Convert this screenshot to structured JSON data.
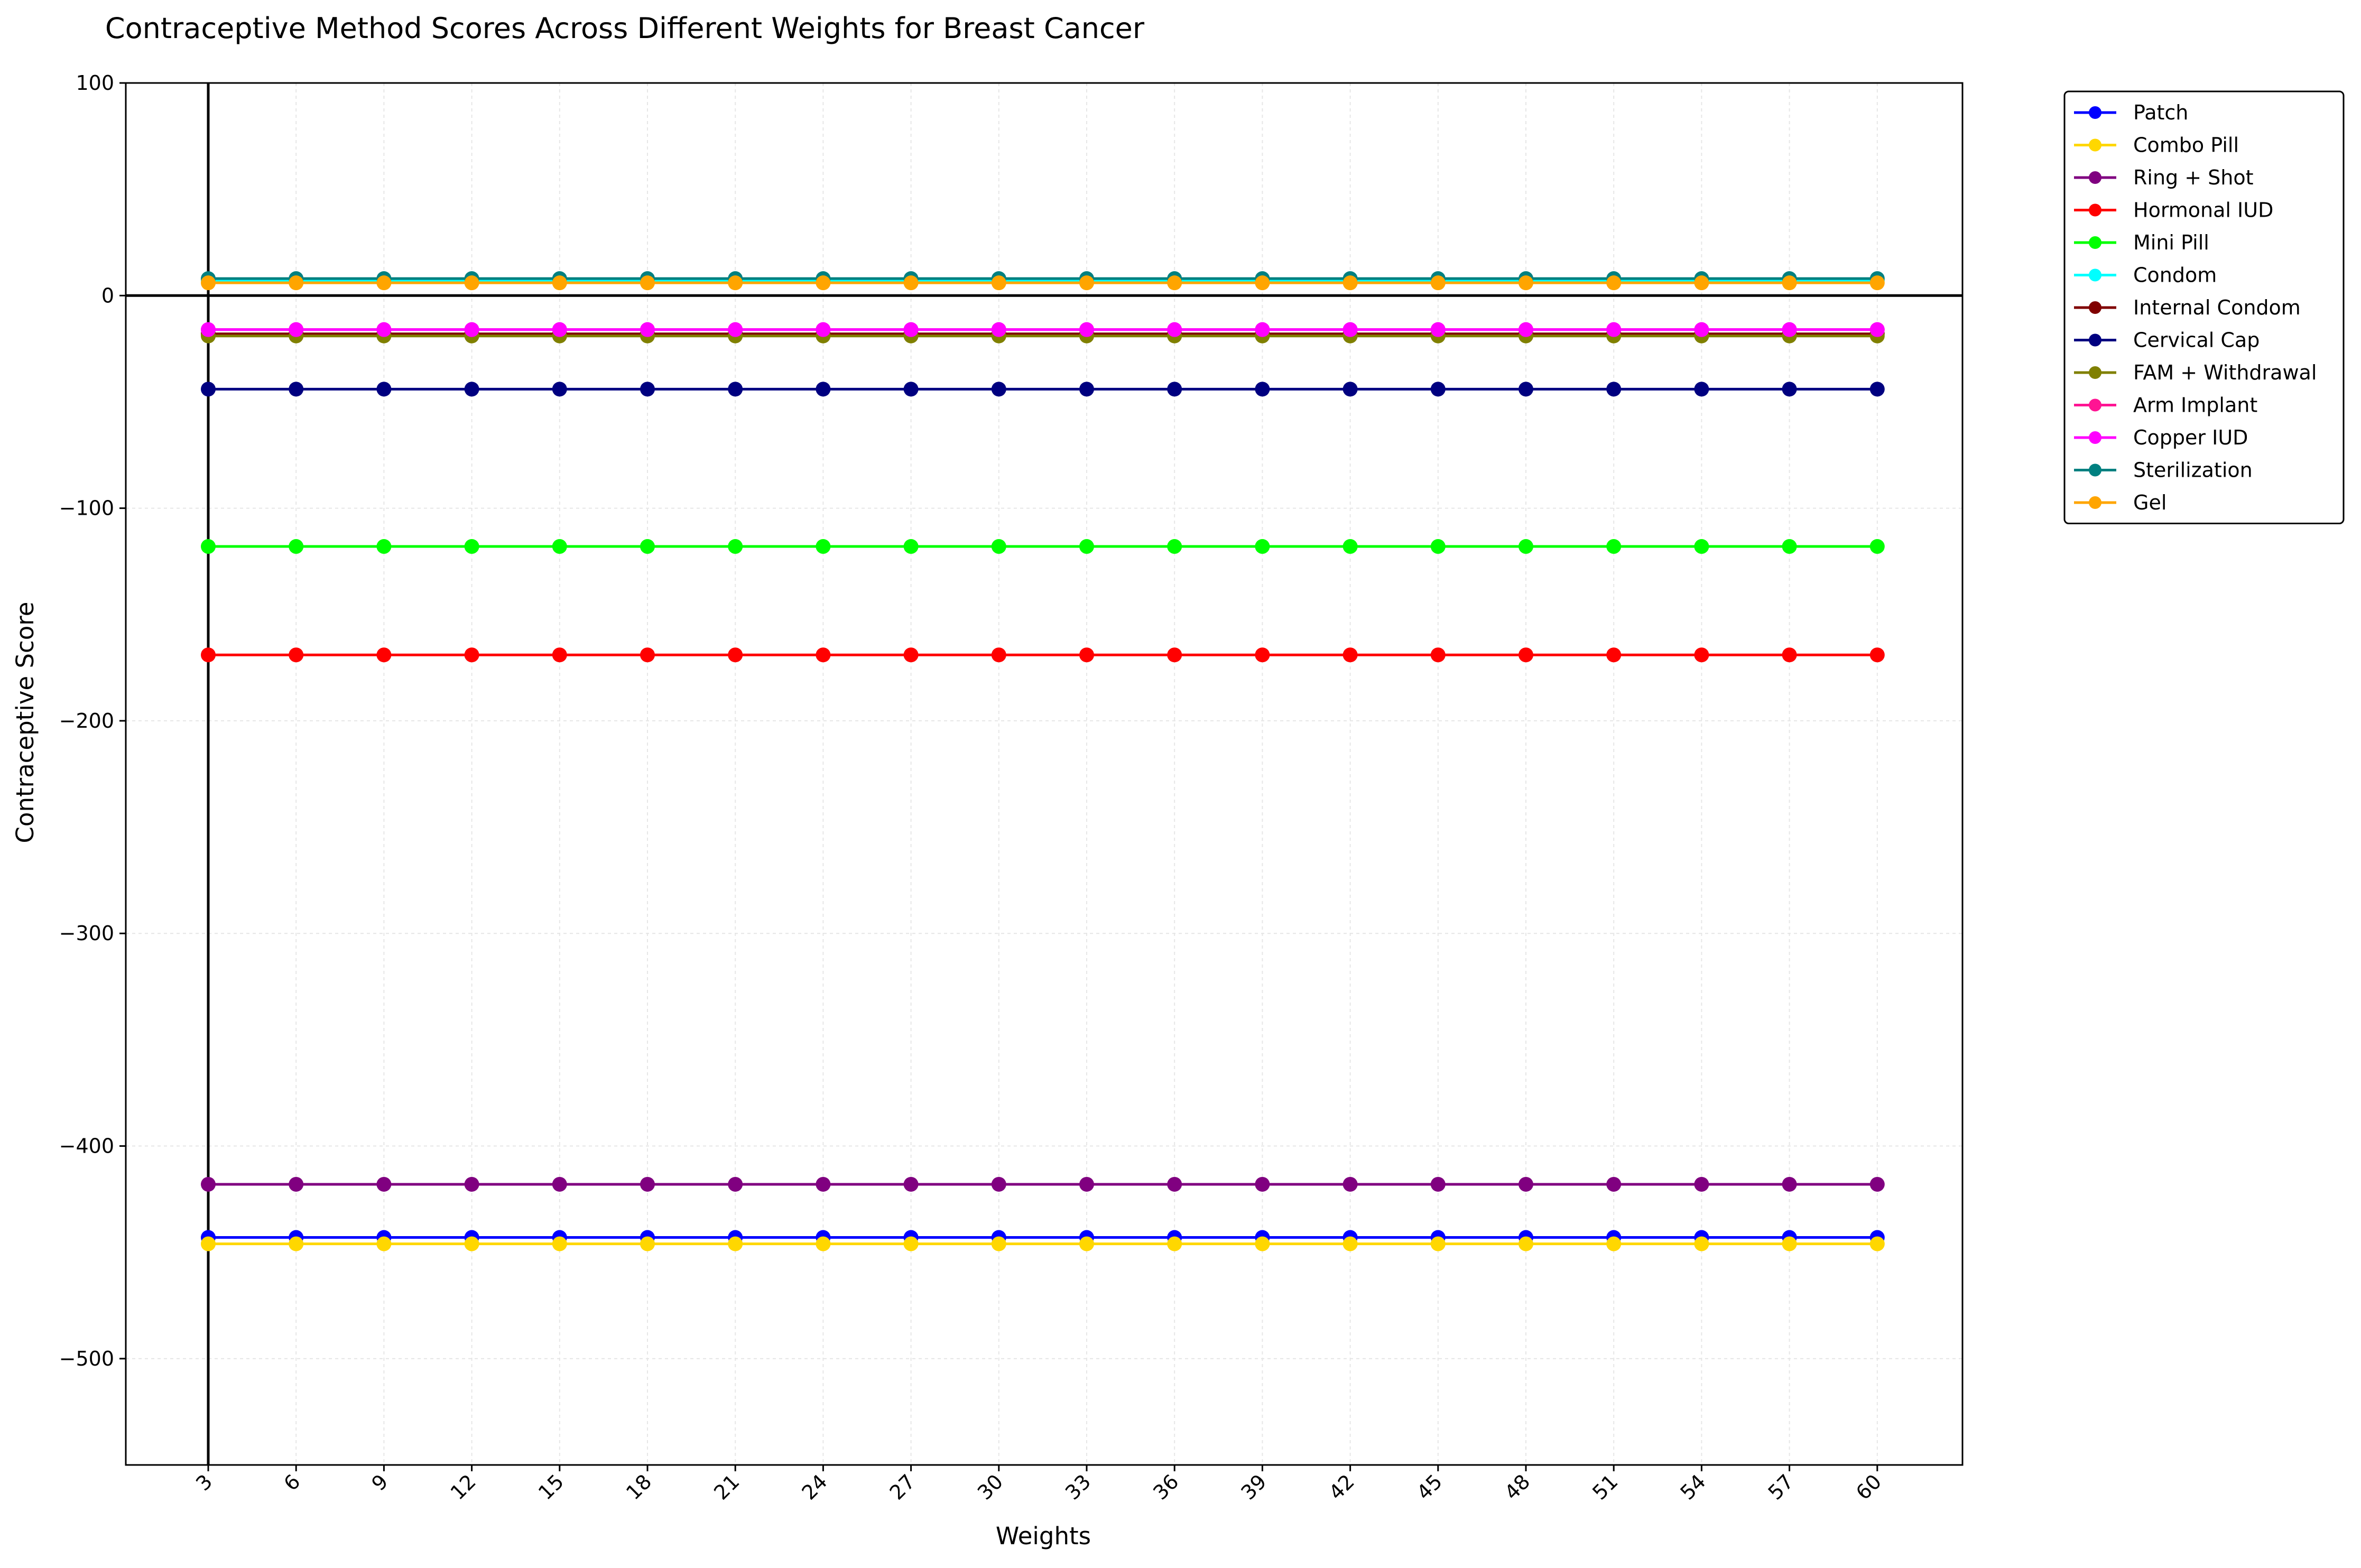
{
  "chart_data": {
    "type": "line",
    "title": "Contraceptive Method Scores Across Different Weights for Breast Cancer",
    "xlabel": "Weights",
    "ylabel": "Contraceptive Score",
    "x": [
      3,
      6,
      9,
      12,
      15,
      18,
      21,
      24,
      27,
      30,
      33,
      36,
      39,
      42,
      45,
      48,
      51,
      54,
      57,
      60
    ],
    "ylim": [
      -550,
      100
    ],
    "yticks": [
      100,
      0,
      -100,
      -200,
      -300,
      -400,
      -500
    ],
    "grid": true,
    "legend_position": "outside-top-right",
    "reference_lines": {
      "y": 0,
      "x": 3
    },
    "series": [
      {
        "name": "Patch",
        "color": "#0000ff",
        "value": -443
      },
      {
        "name": "Combo Pill",
        "color": "#ffd700",
        "value": -446
      },
      {
        "name": "Ring + Shot",
        "color": "#800080",
        "value": -418
      },
      {
        "name": "Hormonal IUD",
        "color": "#ff0000",
        "value": -169
      },
      {
        "name": "Mini Pill",
        "color": "#00ff00",
        "value": -118
      },
      {
        "name": "Condom",
        "color": "#00ffff",
        "value": 7
      },
      {
        "name": "Internal Condom",
        "color": "#800000",
        "value": -18
      },
      {
        "name": "Cervical Cap",
        "color": "#000080",
        "value": -44
      },
      {
        "name": "FAM + Withdrawal",
        "color": "#808000",
        "value": -19
      },
      {
        "name": "Arm Implant",
        "color": "#ff1493",
        "value": -16
      },
      {
        "name": "Copper IUD",
        "color": "#ff00ff",
        "value": -16
      },
      {
        "name": "Sterilization",
        "color": "#008080",
        "value": 8
      },
      {
        "name": "Gel",
        "color": "#ffa500",
        "value": 6
      }
    ]
  }
}
